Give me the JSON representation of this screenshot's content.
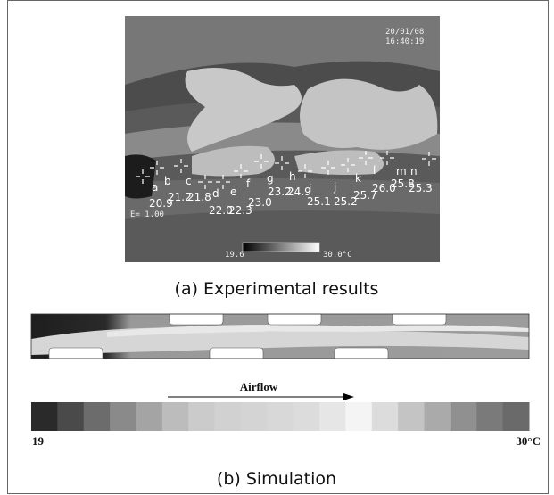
{
  "figure": {
    "panel_a": {
      "timestamp": {
        "date": "20/01/08",
        "time": "16:40:19"
      },
      "points": [
        {
          "label": "a",
          "value": "20.9"
        },
        {
          "label": "b",
          "value": "21.2"
        },
        {
          "label": "c",
          "value": "21.8"
        },
        {
          "label": "d",
          "value": "22.0"
        },
        {
          "label": "e",
          "value": "22.3"
        },
        {
          "label": "f",
          "value": "23.0"
        },
        {
          "label": "g",
          "value": "23.2"
        },
        {
          "label": "h",
          "value": "24.9"
        },
        {
          "label": "i",
          "value": "25.1"
        },
        {
          "label": "j",
          "value": "25.2"
        },
        {
          "label": "k",
          "value": "25.7"
        },
        {
          "label": "l",
          "value": "26.0"
        },
        {
          "label": "m",
          "value": "25.8"
        },
        {
          "label": "n",
          "value": "25.3"
        }
      ],
      "emissivity": "E= 1.00",
      "scale_min": "19.6",
      "scale_max": "30.0°C",
      "caption": "(a) Experimental results"
    },
    "panel_b": {
      "airflow": "Airflow",
      "scale_min": "19",
      "scale_max": "30°C",
      "caption": "(b) Simulation"
    }
  }
}
